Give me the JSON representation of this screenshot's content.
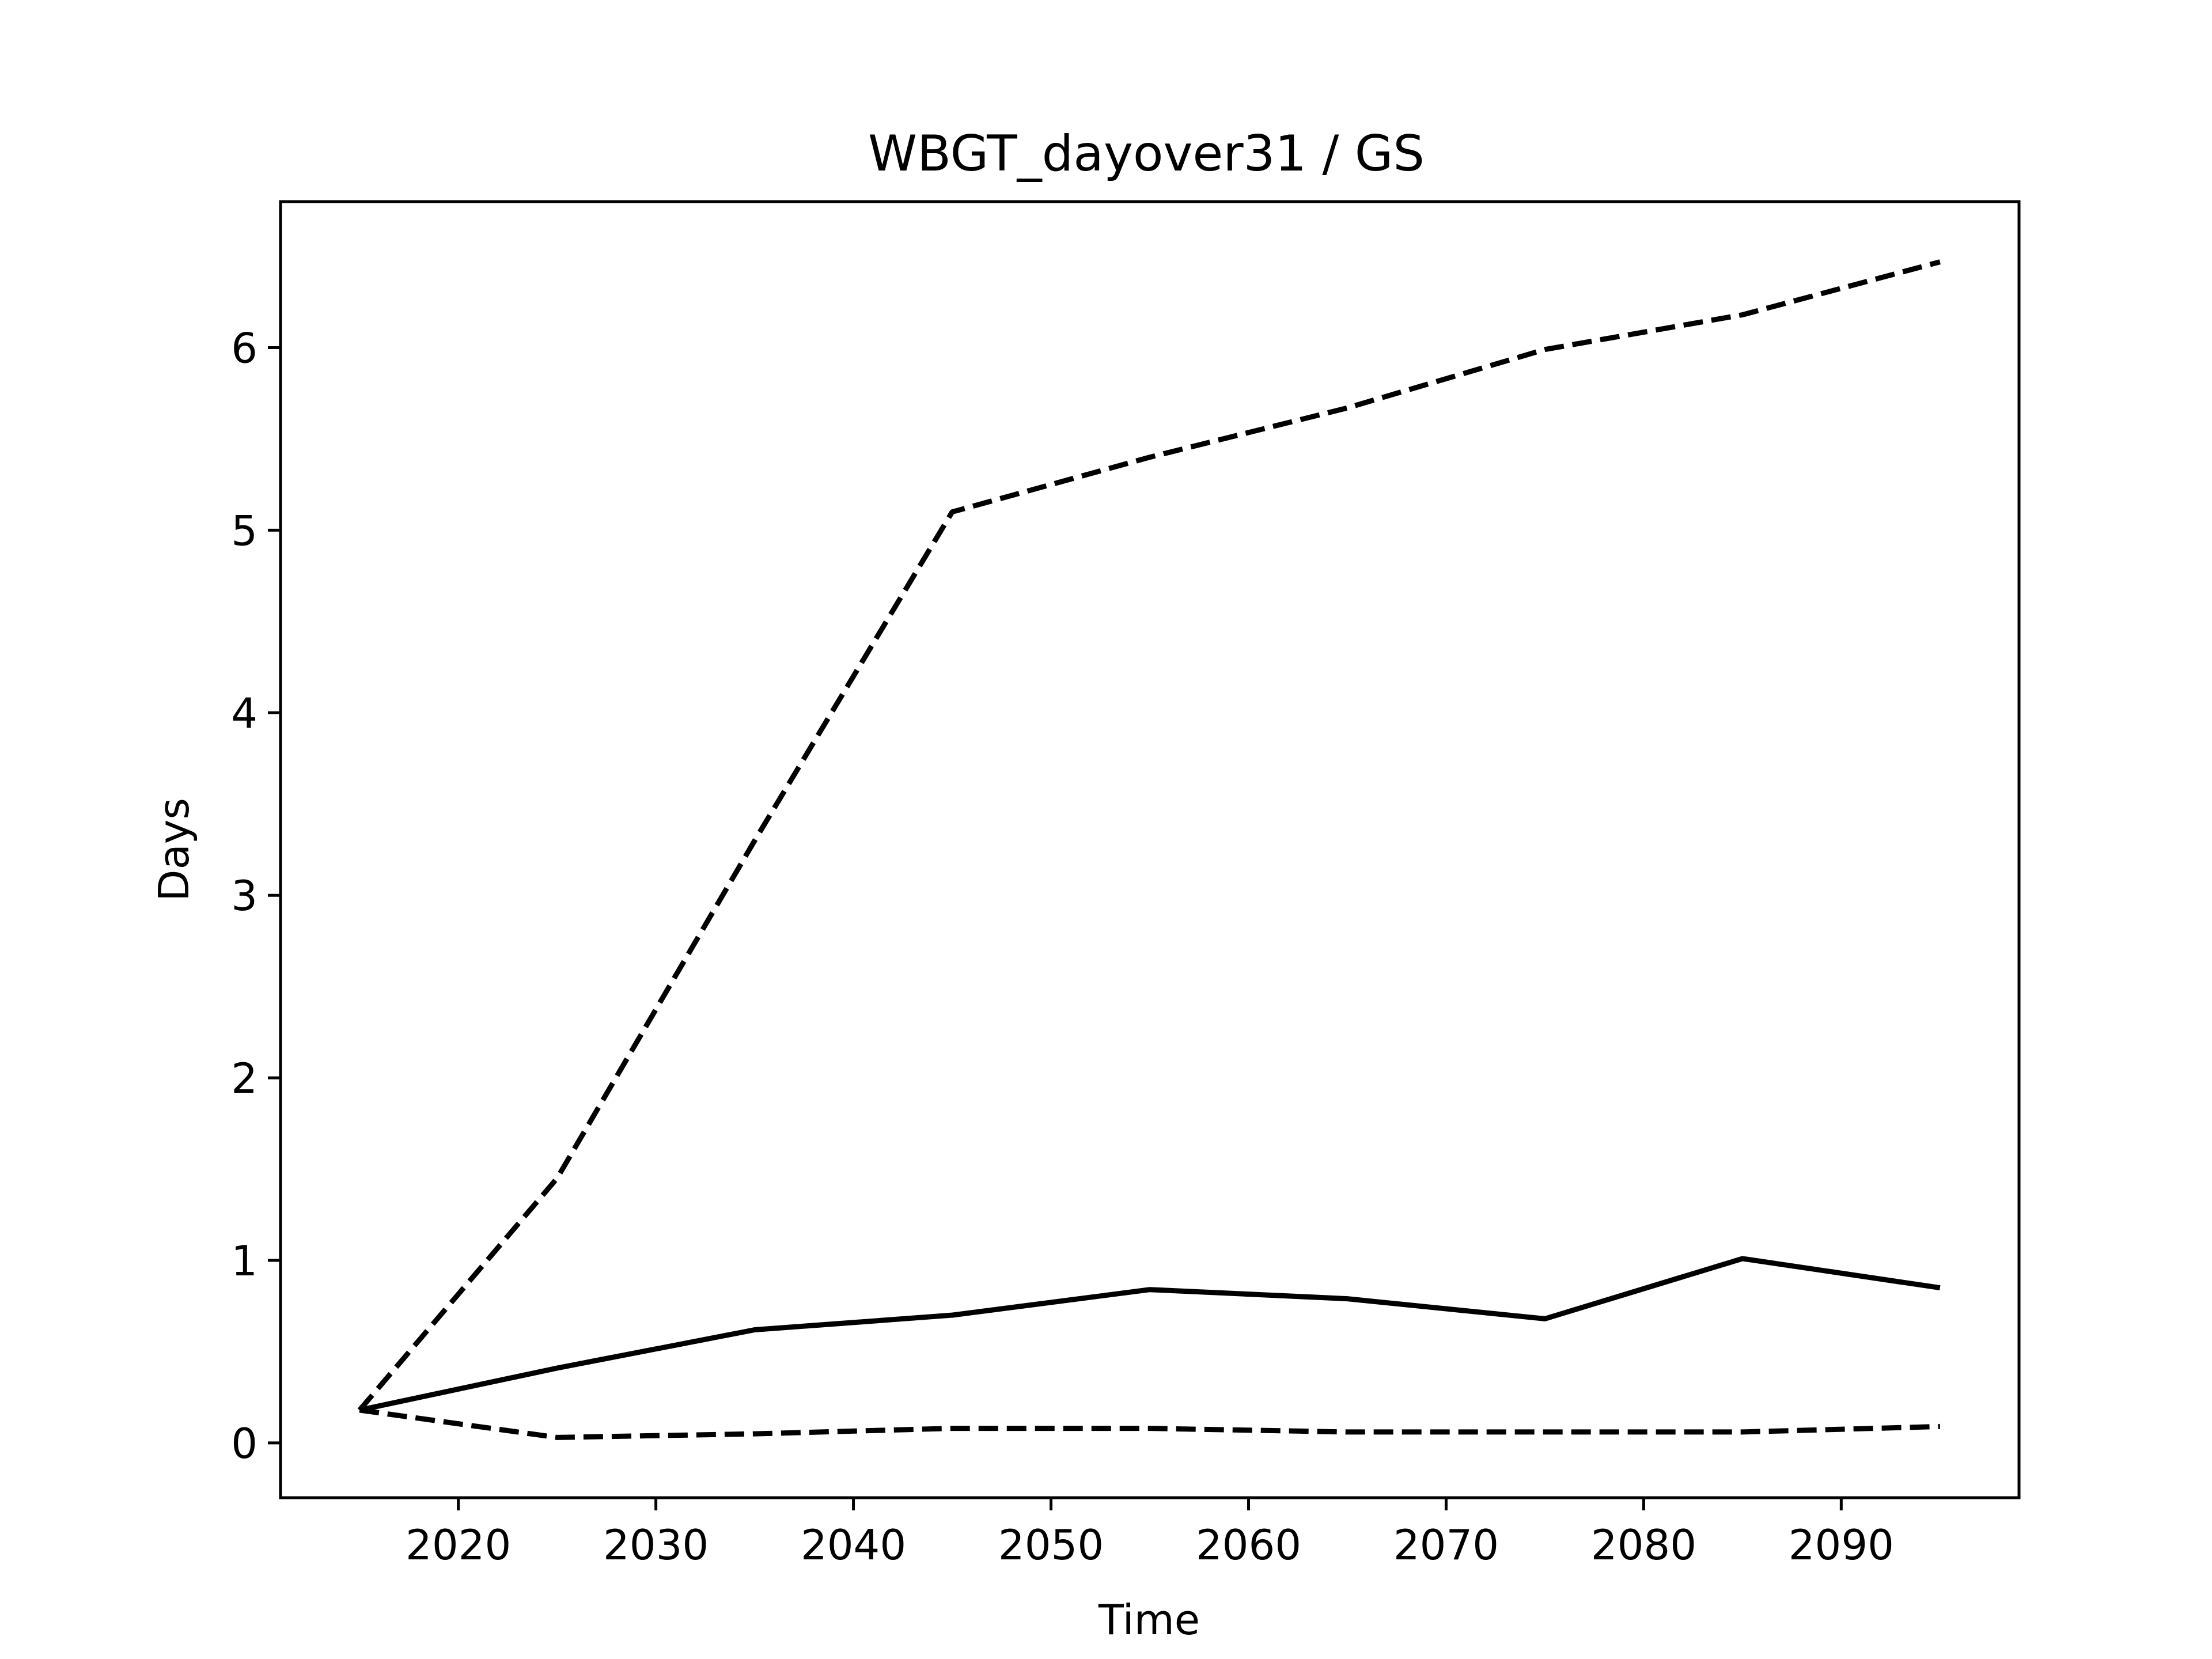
{
  "chart_data": {
    "type": "line",
    "title": "WBGT_dayover31 / GS",
    "xlabel": "Time",
    "ylabel": "Days",
    "xlim": [
      2011,
      2099
    ],
    "ylim": [
      -0.3,
      6.8
    ],
    "xticks": [
      2020,
      2030,
      2040,
      2050,
      2060,
      2070,
      2080,
      2090
    ],
    "yticks": [
      0,
      1,
      2,
      3,
      4,
      5,
      6
    ],
    "grid": false,
    "legend": "none",
    "x": [
      2015,
      2025,
      2035,
      2045,
      2055,
      2065,
      2075,
      2085,
      2095
    ],
    "series": [
      {
        "style": "dashed",
        "color": "#000000",
        "values": [
          0.18,
          1.45,
          3.3,
          5.1,
          5.4,
          5.67,
          5.99,
          6.18,
          6.47
        ]
      },
      {
        "style": "solid",
        "color": "#000000",
        "values": [
          0.18,
          0.41,
          0.62,
          0.7,
          0.84,
          0.79,
          0.68,
          1.01,
          0.85
        ]
      },
      {
        "style": "dashed",
        "color": "#000000",
        "values": [
          0.18,
          0.03,
          0.05,
          0.08,
          0.08,
          0.06,
          0.06,
          0.06,
          0.09
        ]
      }
    ]
  }
}
